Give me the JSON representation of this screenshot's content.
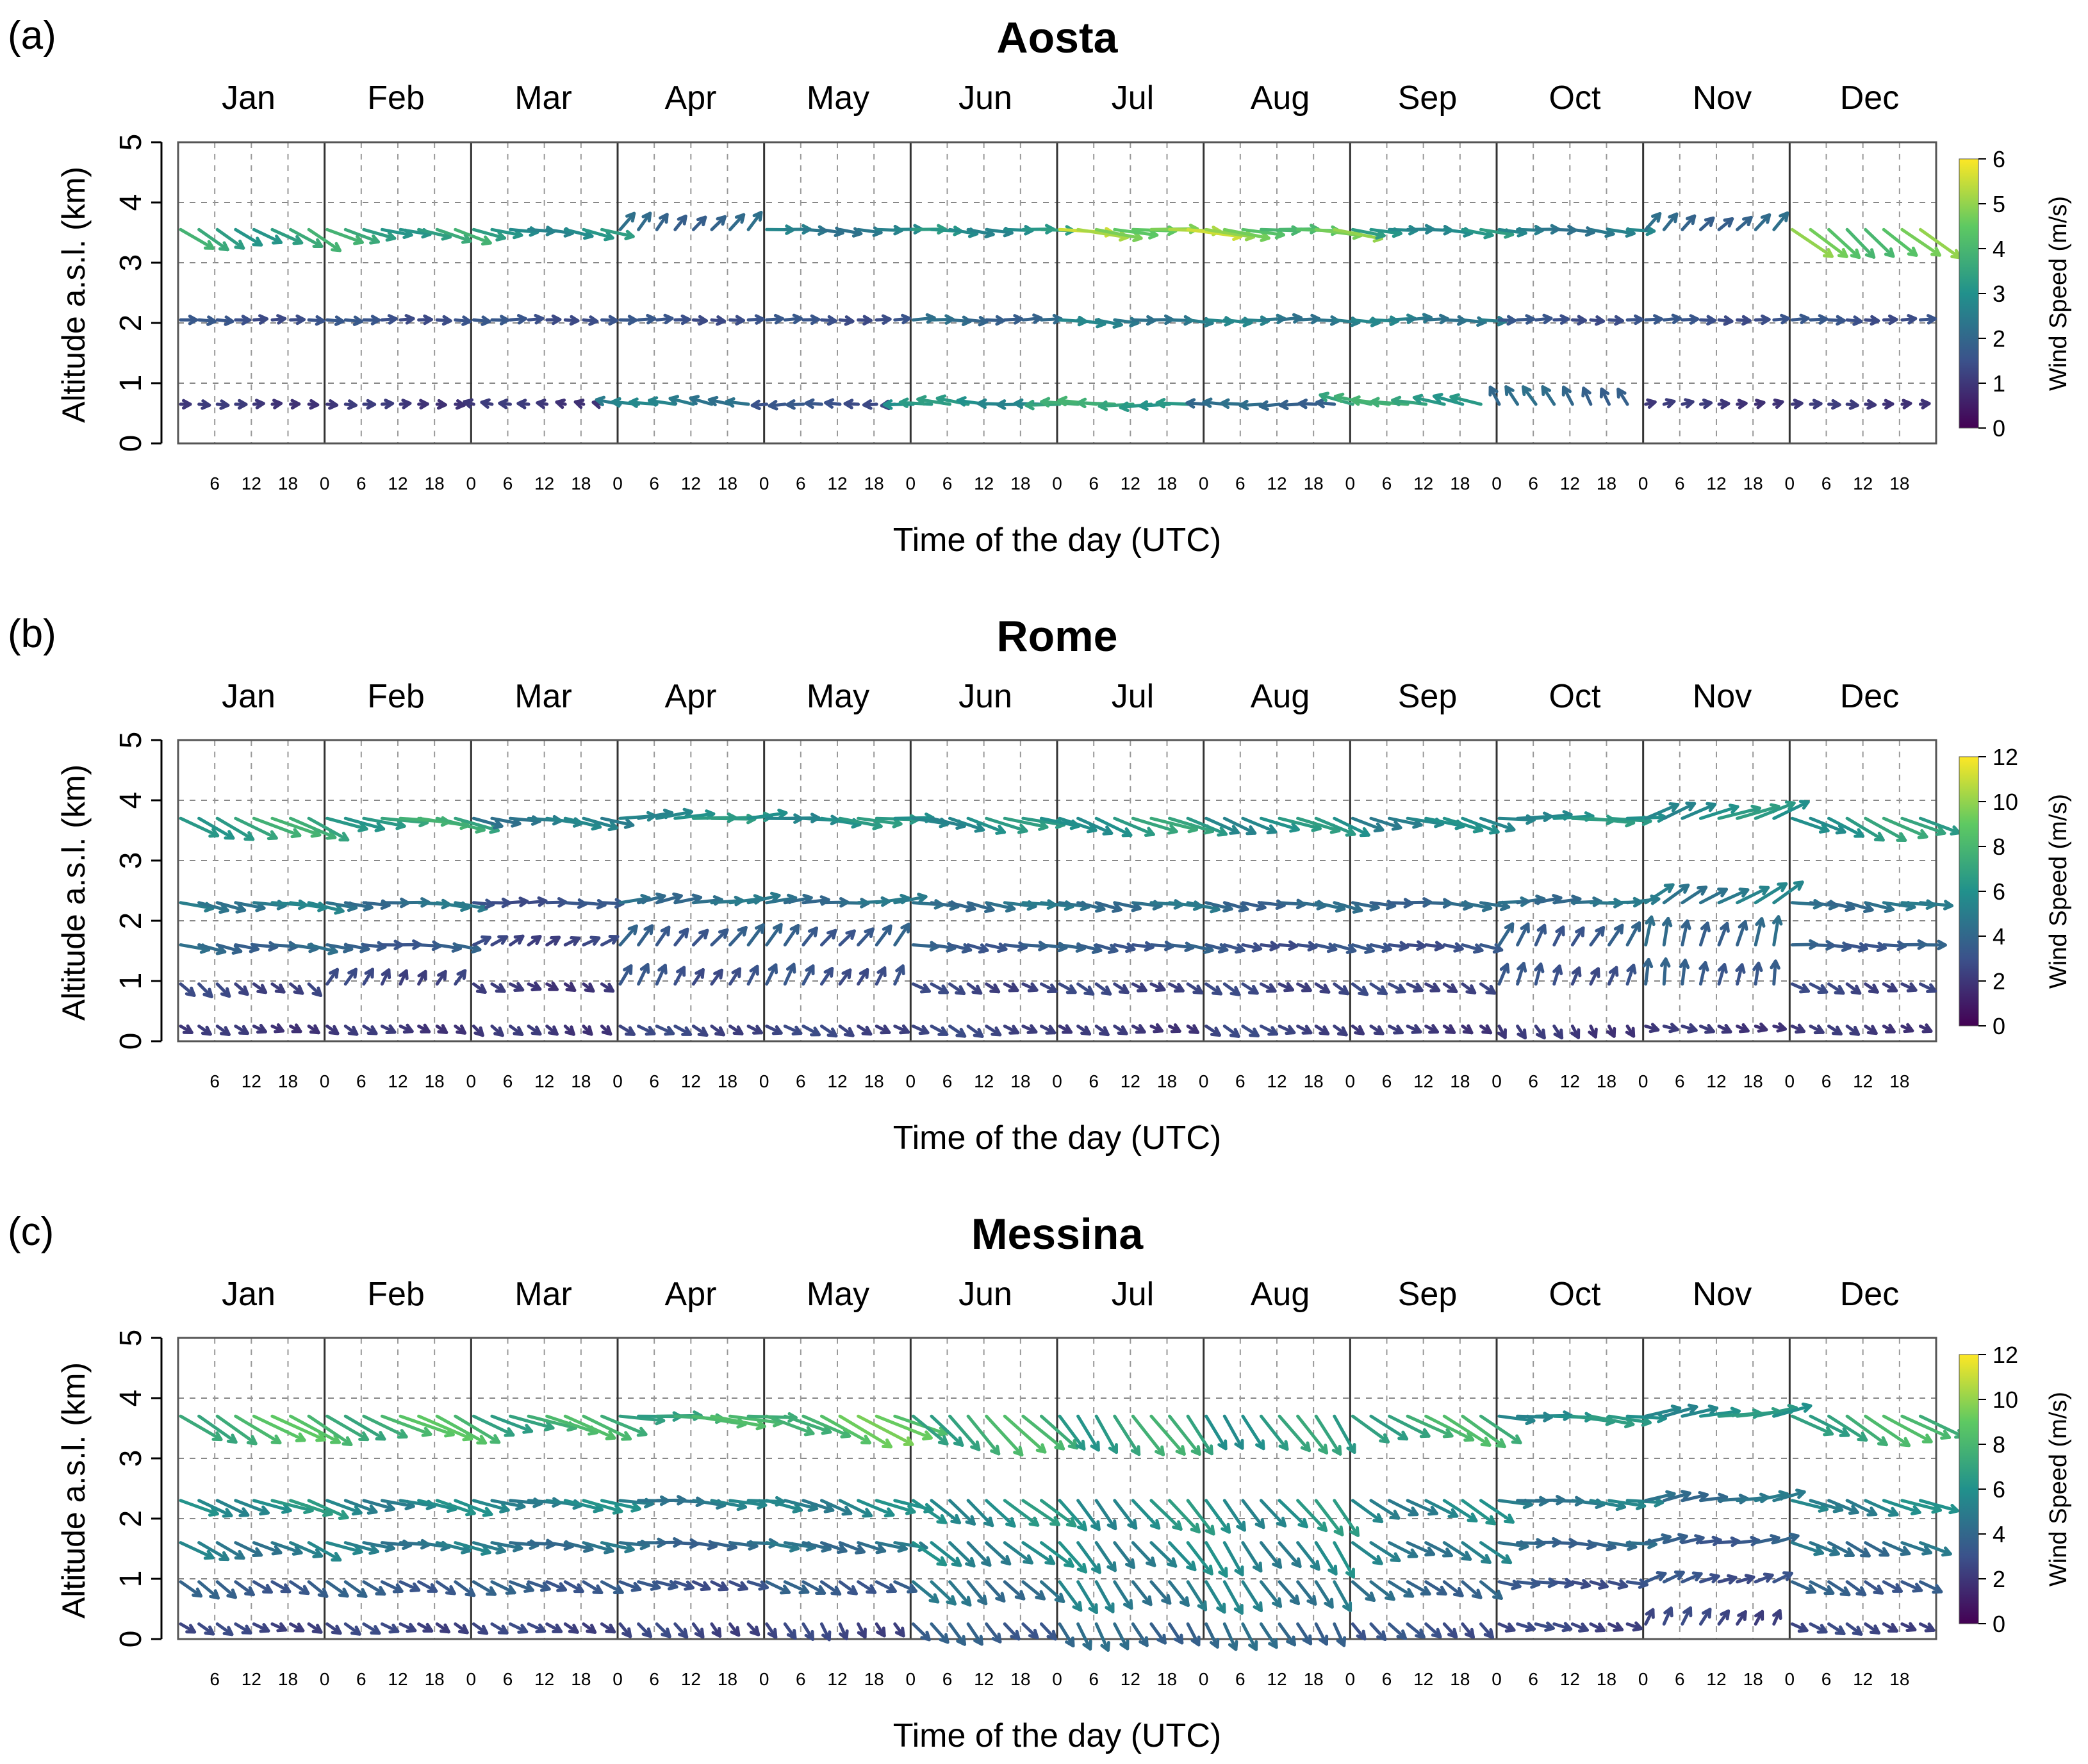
{
  "figure": {
    "months": [
      "Jan",
      "Feb",
      "Mar",
      "Apr",
      "May",
      "Jun",
      "Jul",
      "Aug",
      "Sep",
      "Oct",
      "Nov",
      "Dec"
    ],
    "xtick_labels": [
      "0",
      "6",
      "12",
      "18"
    ],
    "xlabel": "Time of the day (UTC)",
    "ylabel": "Altitude a.s.l. (km)",
    "colorbar_label": "Wind Speed (m/s)",
    "palette": [
      "#440154",
      "#3b528b",
      "#21918c",
      "#5ec962",
      "#fde725"
    ]
  },
  "chart_data": [
    {
      "type": "wind-vector",
      "panel_label": "(a)",
      "title": "Aosta",
      "xlabel": "Time of the day (UTC)",
      "ylabel": "Altitude a.s.l. (km)",
      "ylim": [
        0,
        5
      ],
      "yticks": [
        0,
        1,
        2,
        3,
        4,
        5
      ],
      "colorbar": {
        "label": "Wind Speed (m/s)",
        "range": [
          0,
          6
        ],
        "ticks": [
          0,
          1,
          2,
          3,
          4,
          5,
          6
        ]
      },
      "levels_km": [
        0.65,
        2.05,
        3.55
      ],
      "hours": [
        0,
        3,
        6,
        9,
        12,
        15,
        18,
        21
      ],
      "months": [
        {
          "month": "Jan",
          "speed": [
            1.0,
            1.5,
            3.5
          ],
          "dir_deg": [
            90,
            90,
            120
          ]
        },
        {
          "month": "Feb",
          "speed": [
            1.0,
            1.5,
            3.5
          ],
          "dir_deg": [
            90,
            90,
            105
          ]
        },
        {
          "month": "Mar",
          "speed": [
            1.0,
            1.5,
            3.0
          ],
          "dir_deg": [
            280,
            90,
            100
          ]
        },
        {
          "month": "Apr",
          "speed": [
            2.5,
            1.5,
            2.0
          ],
          "dir_deg": [
            280,
            90,
            40
          ]
        },
        {
          "month": "May",
          "speed": [
            1.5,
            1.5,
            2.5
          ],
          "dir_deg": [
            270,
            90,
            95
          ]
        },
        {
          "month": "Jun",
          "speed": [
            3.0,
            2.0,
            3.0
          ],
          "dir_deg": [
            275,
            90,
            95
          ]
        },
        {
          "month": "Jul",
          "speed": [
            3.5,
            2.5,
            5.0
          ],
          "dir_deg": [
            270,
            95,
            95
          ]
        },
        {
          "month": "Aug",
          "speed": [
            2.0,
            2.5,
            4.5
          ],
          "dir_deg": [
            270,
            90,
            95
          ]
        },
        {
          "month": "Sep",
          "speed": [
            3.5,
            2.5,
            3.0
          ],
          "dir_deg": [
            280,
            90,
            95
          ]
        },
        {
          "month": "Oct",
          "speed": [
            2.0,
            1.5,
            2.5
          ],
          "dir_deg": [
            330,
            90,
            95
          ]
        },
        {
          "month": "Nov",
          "speed": [
            1.0,
            1.5,
            2.0
          ],
          "dir_deg": [
            80,
            90,
            45
          ]
        },
        {
          "month": "Dec",
          "speed": [
            1.0,
            1.5,
            4.5
          ],
          "dir_deg": [
            90,
            90,
            130
          ]
        }
      ]
    },
    {
      "type": "wind-vector",
      "panel_label": "(b)",
      "title": "Rome",
      "xlabel": "Time of the day (UTC)",
      "ylabel": "Altitude a.s.l. (km)",
      "ylim": [
        0,
        5
      ],
      "yticks": [
        0,
        1,
        2,
        3,
        4,
        5
      ],
      "colorbar": {
        "label": "Wind Speed (m/s)",
        "range": [
          0,
          12
        ],
        "ticks": [
          0,
          2,
          4,
          6,
          8,
          10,
          12
        ]
      },
      "levels_km": [
        0.25,
        0.95,
        1.6,
        2.3,
        3.7
      ],
      "hours": [
        0,
        3,
        6,
        9,
        12,
        15,
        18,
        21
      ],
      "months": [
        {
          "month": "Jan",
          "speed": [
            2.0,
            2.5,
            4.0,
            5.0,
            7.0
          ],
          "dir_deg": [
            120,
            130,
            100,
            100,
            115
          ]
        },
        {
          "month": "Feb",
          "speed": [
            2.0,
            2.5,
            3.5,
            4.5,
            7.0
          ],
          "dir_deg": [
            120,
            30,
            95,
            95,
            100
          ]
        },
        {
          "month": "Mar",
          "speed": [
            2.0,
            2.0,
            2.5,
            3.0,
            5.0
          ],
          "dir_deg": [
            130,
            120,
            60,
            90,
            100
          ]
        },
        {
          "month": "Apr",
          "speed": [
            2.5,
            3.0,
            3.5,
            4.5,
            6.0
          ],
          "dir_deg": [
            120,
            30,
            40,
            80,
            85
          ]
        },
        {
          "month": "May",
          "speed": [
            2.5,
            3.0,
            3.5,
            4.5,
            6.0
          ],
          "dir_deg": [
            120,
            30,
            40,
            85,
            95
          ]
        },
        {
          "month": "Jun",
          "speed": [
            2.5,
            2.5,
            3.5,
            4.5,
            6.0
          ],
          "dir_deg": [
            120,
            120,
            100,
            100,
            105
          ]
        },
        {
          "month": "Jul",
          "speed": [
            2.0,
            2.5,
            3.5,
            4.5,
            6.5
          ],
          "dir_deg": [
            120,
            120,
            100,
            100,
            110
          ]
        },
        {
          "month": "Aug",
          "speed": [
            2.5,
            2.5,
            3.0,
            4.0,
            6.0
          ],
          "dir_deg": [
            120,
            120,
            100,
            100,
            110
          ]
        },
        {
          "month": "Sep",
          "speed": [
            2.0,
            2.5,
            3.0,
            4.0,
            5.5
          ],
          "dir_deg": [
            120,
            120,
            100,
            95,
            105
          ]
        },
        {
          "month": "Oct",
          "speed": [
            2.0,
            3.0,
            3.5,
            4.5,
            6.0
          ],
          "dir_deg": [
            150,
            20,
            30,
            85,
            90
          ]
        },
        {
          "month": "Nov",
          "speed": [
            2.0,
            3.5,
            4.0,
            5.0,
            6.0
          ],
          "dir_deg": [
            110,
            10,
            15,
            60,
            70
          ]
        },
        {
          "month": "Dec",
          "speed": [
            2.0,
            2.5,
            3.5,
            4.5,
            6.5
          ],
          "dir_deg": [
            120,
            120,
            95,
            100,
            115
          ]
        }
      ]
    },
    {
      "type": "wind-vector",
      "panel_label": "(c)",
      "title": "Messina",
      "xlabel": "Time of the day (UTC)",
      "ylabel": "Altitude a.s.l. (km)",
      "ylim": [
        0,
        5
      ],
      "yticks": [
        0,
        1,
        2,
        3,
        4,
        5
      ],
      "colorbar": {
        "label": "Wind Speed (m/s)",
        "range": [
          0,
          12
        ],
        "ticks": [
          0,
          2,
          4,
          6,
          8,
          10,
          12
        ]
      },
      "levels_km": [
        0.25,
        0.95,
        1.6,
        2.3,
        3.7
      ],
      "hours": [
        0,
        3,
        6,
        9,
        12,
        15,
        18,
        21
      ],
      "months": [
        {
          "month": "Jan",
          "speed": [
            2.5,
            3.5,
            5.0,
            6.0,
            8.0
          ],
          "dir_deg": [
            120,
            125,
            115,
            110,
            120
          ]
        },
        {
          "month": "Feb",
          "speed": [
            2.5,
            3.5,
            5.0,
            5.5,
            8.0
          ],
          "dir_deg": [
            120,
            120,
            100,
            105,
            115
          ]
        },
        {
          "month": "Mar",
          "speed": [
            2.5,
            3.5,
            4.5,
            5.5,
            7.5
          ],
          "dir_deg": [
            120,
            115,
            100,
            100,
            110
          ]
        },
        {
          "month": "Apr",
          "speed": [
            2.5,
            3.0,
            4.0,
            5.0,
            7.5
          ],
          "dir_deg": [
            140,
            110,
            95,
            95,
            95
          ]
        },
        {
          "month": "May",
          "speed": [
            2.5,
            3.5,
            4.5,
            5.5,
            8.5
          ],
          "dir_deg": [
            150,
            120,
            105,
            110,
            115
          ]
        },
        {
          "month": "Jun",
          "speed": [
            3.5,
            4.5,
            5.5,
            6.0,
            7.5
          ],
          "dir_deg": [
            140,
            135,
            130,
            130,
            135
          ]
        },
        {
          "month": "Jul",
          "speed": [
            4.0,
            5.0,
            5.5,
            6.0,
            7.0
          ],
          "dir_deg": [
            150,
            145,
            140,
            140,
            145
          ]
        },
        {
          "month": "Aug",
          "speed": [
            4.0,
            5.0,
            5.5,
            6.0,
            6.5
          ],
          "dir_deg": [
            150,
            145,
            145,
            140,
            145
          ]
        },
        {
          "month": "Sep",
          "speed": [
            3.0,
            4.0,
            5.0,
            5.5,
            7.5
          ],
          "dir_deg": [
            135,
            125,
            120,
            120,
            120
          ]
        },
        {
          "month": "Oct",
          "speed": [
            2.5,
            3.0,
            4.0,
            5.0,
            6.0
          ],
          "dir_deg": [
            110,
            100,
            95,
            95,
            95
          ]
        },
        {
          "month": "Nov",
          "speed": [
            2.5,
            3.0,
            3.5,
            4.5,
            6.0
          ],
          "dir_deg": [
            30,
            70,
            80,
            80,
            80
          ]
        },
        {
          "month": "Dec",
          "speed": [
            2.5,
            3.5,
            4.5,
            5.5,
            7.5
          ],
          "dir_deg": [
            120,
            120,
            115,
            110,
            120
          ]
        }
      ]
    }
  ]
}
